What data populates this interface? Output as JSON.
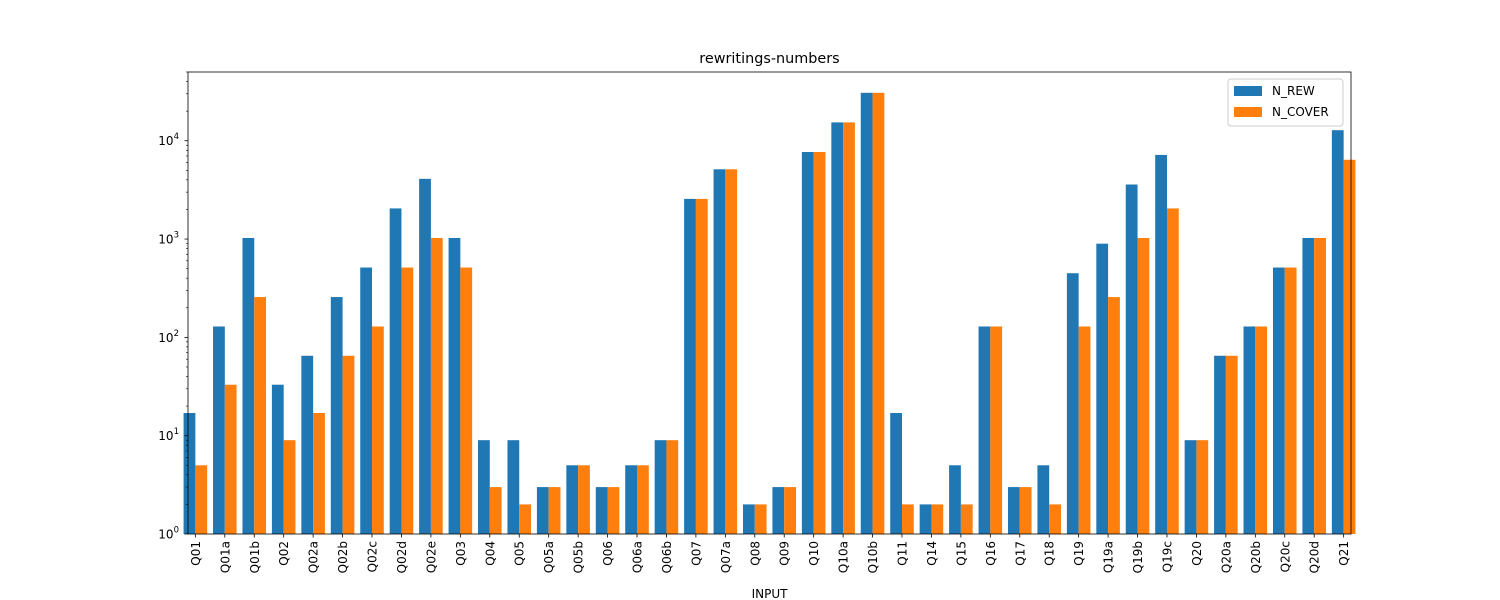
{
  "chart_data": {
    "type": "bar",
    "title": "rewritings-numbers",
    "xlabel": "INPUT",
    "ylabel": "",
    "yscale": "log",
    "ylim": [
      1,
      50000
    ],
    "ytick_labels": [
      {
        "base": "10",
        "exp": "0",
        "value": 1
      },
      {
        "base": "10",
        "exp": "1",
        "value": 10
      },
      {
        "base": "10",
        "exp": "2",
        "value": 100
      },
      {
        "base": "10",
        "exp": "3",
        "value": 1000
      },
      {
        "base": "10",
        "exp": "4",
        "value": 10000
      }
    ],
    "legend_position": "top-right",
    "categories": [
      "Q01",
      "Q01a",
      "Q01b",
      "Q02",
      "Q02a",
      "Q02b",
      "Q02c",
      "Q02d",
      "Q02e",
      "Q03",
      "Q04",
      "Q05",
      "Q05a",
      "Q05b",
      "Q06",
      "Q06a",
      "Q06b",
      "Q07",
      "Q07a",
      "Q08",
      "Q09",
      "Q10",
      "Q10a",
      "Q10b",
      "Q11",
      "Q14",
      "Q15",
      "Q16",
      "Q17",
      "Q18",
      "Q19",
      "Q19a",
      "Q19b",
      "Q19c",
      "Q20",
      "Q20a",
      "Q20b",
      "Q20c",
      "Q20d",
      "Q21"
    ],
    "series": [
      {
        "name": "N_REW",
        "color": "#1f77b4",
        "values": [
          17,
          129,
          1025,
          33,
          65,
          257,
          513,
          2049,
          4097,
          1025,
          9,
          9,
          3,
          5,
          3,
          5,
          9,
          2561,
          5121,
          2,
          3,
          7681,
          15361,
          30721,
          17,
          2,
          5,
          129,
          3,
          5,
          449,
          897,
          3585,
          7169,
          9,
          65,
          129,
          513,
          1025,
          12800
        ]
      },
      {
        "name": "N_COVER",
        "color": "#ff7f0e",
        "values": [
          5,
          33,
          257,
          9,
          17,
          65,
          129,
          513,
          1025,
          513,
          3,
          2,
          3,
          5,
          3,
          5,
          9,
          2561,
          5121,
          2,
          3,
          7681,
          15361,
          30721,
          2,
          2,
          2,
          129,
          3,
          2,
          129,
          257,
          1025,
          2049,
          9,
          65,
          129,
          513,
          1025,
          6400
        ]
      }
    ]
  }
}
